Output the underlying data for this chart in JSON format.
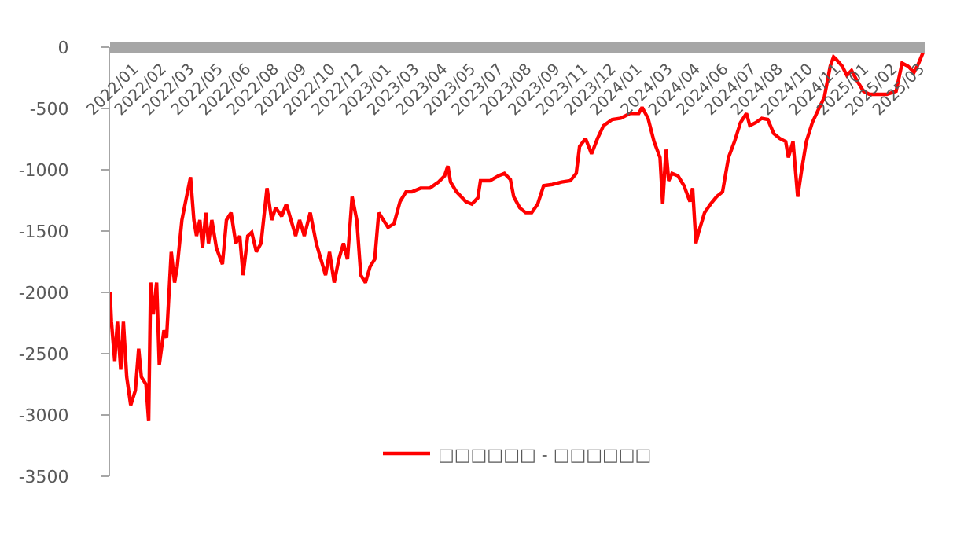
{
  "chart_data": {
    "type": "line",
    "x": [
      "2022-01-04",
      "2022-01-06",
      "2022-01-11",
      "2022-01-15",
      "2022-01-20",
      "2022-01-24",
      "2022-01-29",
      "2022-02-04",
      "2022-02-11",
      "2022-02-16",
      "2022-02-20",
      "2022-02-27",
      "2022-03-03",
      "2022-03-06",
      "2022-03-10",
      "2022-03-15",
      "2022-03-19",
      "2022-03-26",
      "2022-03-30",
      "2022-04-06",
      "2022-04-11",
      "2022-04-15",
      "2022-04-22",
      "2022-04-29",
      "2022-05-05",
      "2022-05-10",
      "2022-05-14",
      "2022-05-19",
      "2022-05-23",
      "2022-05-28",
      "2022-06-01",
      "2022-06-06",
      "2022-06-13",
      "2022-06-22",
      "2022-06-28",
      "2022-07-05",
      "2022-07-12",
      "2022-07-18",
      "2022-07-23",
      "2022-07-30",
      "2022-08-05",
      "2022-08-12",
      "2022-08-19",
      "2022-08-28",
      "2022-09-04",
      "2022-09-10",
      "2022-09-19",
      "2022-09-26",
      "2022-10-03",
      "2022-10-10",
      "2022-10-16",
      "2022-10-23",
      "2022-11-01",
      "2022-11-10",
      "2022-11-17",
      "2022-11-24",
      "2022-11-30",
      "2022-12-07",
      "2022-12-14",
      "2022-12-21",
      "2022-12-27",
      "2023-01-03",
      "2023-01-10",
      "2023-01-16",
      "2023-01-23",
      "2023-01-30",
      "2023-02-06",
      "2023-02-12",
      "2023-02-19",
      "2023-02-26",
      "2023-03-07",
      "2023-03-16",
      "2023-03-25",
      "2023-04-03",
      "2023-04-16",
      "2023-04-30",
      "2023-05-13",
      "2023-05-22",
      "2023-05-27",
      "2023-05-31",
      "2023-06-09",
      "2023-06-23",
      "2023-07-02",
      "2023-07-11",
      "2023-07-15",
      "2023-07-29",
      "2023-08-11",
      "2023-08-20",
      "2023-08-29",
      "2023-09-03",
      "2023-09-12",
      "2023-09-21",
      "2023-09-30",
      "2023-10-09",
      "2023-10-18",
      "2023-10-31",
      "2023-11-14",
      "2023-11-27",
      "2023-12-06",
      "2023-12-11",
      "2023-12-20",
      "2023-12-29",
      "2024-01-07",
      "2024-01-16",
      "2024-01-29",
      "2024-02-11",
      "2024-02-25",
      "2024-03-09",
      "2024-03-14",
      "2024-03-23",
      "2024-04-01",
      "2024-04-10",
      "2024-04-14",
      "2024-04-19",
      "2024-04-23",
      "2024-04-28",
      "2024-05-07",
      "2024-05-16",
      "2024-05-25",
      "2024-05-29",
      "2024-06-03",
      "2024-06-07",
      "2024-06-16",
      "2024-06-25",
      "2024-07-04",
      "2024-07-13",
      "2024-07-22",
      "2024-07-31",
      "2024-08-09",
      "2024-08-18",
      "2024-08-23",
      "2024-09-01",
      "2024-09-10",
      "2024-09-19",
      "2024-09-28",
      "2024-10-07",
      "2024-10-16",
      "2024-10-20",
      "2024-10-27",
      "2024-11-03",
      "2024-11-09",
      "2024-11-16",
      "2024-11-25",
      "2024-12-04",
      "2024-12-13",
      "2024-12-22",
      "2024-12-27",
      "2024-12-31",
      "2025-01-09",
      "2025-01-16",
      "2025-01-23",
      "2025-02-01",
      "2025-02-10",
      "2025-02-19",
      "2025-03-04",
      "2025-03-17",
      "2025-03-31",
      "2025-04-09",
      "2025-04-18",
      "2025-04-27",
      "2025-05-04",
      "2025-05-13"
    ],
    "series": [
      {
        "name": "□□□□□□ - □□□□□□",
        "color": "#ff0000",
        "values": [
          -2000,
          -2240,
          -2560,
          -2240,
          -2630,
          -2240,
          -2690,
          -2920,
          -2800,
          -2460,
          -2690,
          -2750,
          -3050,
          -1920,
          -2180,
          -1920,
          -2590,
          -2310,
          -2370,
          -1670,
          -1920,
          -1790,
          -1410,
          -1220,
          -1060,
          -1410,
          -1540,
          -1410,
          -1640,
          -1350,
          -1600,
          -1410,
          -1640,
          -1770,
          -1410,
          -1350,
          -1600,
          -1540,
          -1860,
          -1540,
          -1510,
          -1670,
          -1600,
          -1150,
          -1410,
          -1310,
          -1380,
          -1280,
          -1410,
          -1540,
          -1410,
          -1540,
          -1350,
          -1600,
          -1730,
          -1860,
          -1670,
          -1920,
          -1730,
          -1600,
          -1730,
          -1220,
          -1410,
          -1860,
          -1920,
          -1790,
          -1730,
          -1350,
          -1410,
          -1470,
          -1440,
          -1260,
          -1180,
          -1180,
          -1150,
          -1150,
          -1100,
          -1050,
          -970,
          -1100,
          -1180,
          -1260,
          -1280,
          -1230,
          -1090,
          -1090,
          -1050,
          -1030,
          -1080,
          -1220,
          -1310,
          -1350,
          -1350,
          -1280,
          -1130,
          -1120,
          -1100,
          -1090,
          -1030,
          -810,
          -745,
          -870,
          -745,
          -640,
          -590,
          -580,
          -540,
          -540,
          -490,
          -580,
          -770,
          -900,
          -1280,
          -835,
          -1090,
          -1030,
          -1050,
          -1130,
          -1260,
          -1150,
          -1600,
          -1510,
          -1350,
          -1280,
          -1220,
          -1180,
          -900,
          -770,
          -615,
          -540,
          -640,
          -615,
          -580,
          -590,
          -705,
          -745,
          -770,
          -900,
          -770,
          -1220,
          -1000,
          -770,
          -615,
          -510,
          -410,
          -155,
          -80,
          -100,
          -155,
          -230,
          -190,
          -280,
          -360,
          -385,
          -385,
          -385,
          -360,
          -130,
          -155,
          -205,
          -130,
          -10
        ]
      }
    ],
    "xlim": [
      "2022-01-04",
      "2025-05-13"
    ],
    "xticks": [
      {
        "value": "2022-01-04",
        "label": "2022/01"
      },
      {
        "value": "2022-02-15",
        "label": "2022/02"
      },
      {
        "value": "2022-03-29",
        "label": "2022/03"
      },
      {
        "value": "2022-05-11",
        "label": "2022/05"
      },
      {
        "value": "2022-06-22",
        "label": "2022/06"
      },
      {
        "value": "2022-08-03",
        "label": "2022/08"
      },
      {
        "value": "2022-09-14",
        "label": "2022/09"
      },
      {
        "value": "2022-10-27",
        "label": "2022/10"
      },
      {
        "value": "2022-12-08",
        "label": "2022/12"
      },
      {
        "value": "2023-01-19",
        "label": "2023/01"
      },
      {
        "value": "2023-03-02",
        "label": "2023/03"
      },
      {
        "value": "2023-04-14",
        "label": "2023/04"
      },
      {
        "value": "2023-05-26",
        "label": "2023/05"
      },
      {
        "value": "2023-07-07",
        "label": "2023/07"
      },
      {
        "value": "2023-08-18",
        "label": "2023/08"
      },
      {
        "value": "2023-09-30",
        "label": "2023/09"
      },
      {
        "value": "2023-11-11",
        "label": "2023/11"
      },
      {
        "value": "2023-12-23",
        "label": "2023/12"
      },
      {
        "value": "2024-01-31",
        "label": "2024/01"
      },
      {
        "value": "2024-03-17",
        "label": "2024/03"
      },
      {
        "value": "2024-04-28",
        "label": "2024/04"
      },
      {
        "value": "2024-06-09",
        "label": "2024/06"
      },
      {
        "value": "2024-07-21",
        "label": "2024/07"
      },
      {
        "value": "2024-08-30",
        "label": "2024/08"
      },
      {
        "value": "2024-10-14",
        "label": "2024/10"
      },
      {
        "value": "2024-11-25",
        "label": "2024/11"
      },
      {
        "value": "2025-01-06",
        "label": "2025/01"
      },
      {
        "value": "2025-02-18",
        "label": "2025/02"
      },
      {
        "value": "2025-03-31",
        "label": "2025/03"
      }
    ],
    "ylim": [
      -3500,
      0
    ],
    "yticks": [
      -3500,
      -3000,
      -2500,
      -2000,
      -1500,
      -1000,
      -500,
      0
    ],
    "legend": "bottom",
    "marker": "none",
    "line_style": "solid"
  }
}
